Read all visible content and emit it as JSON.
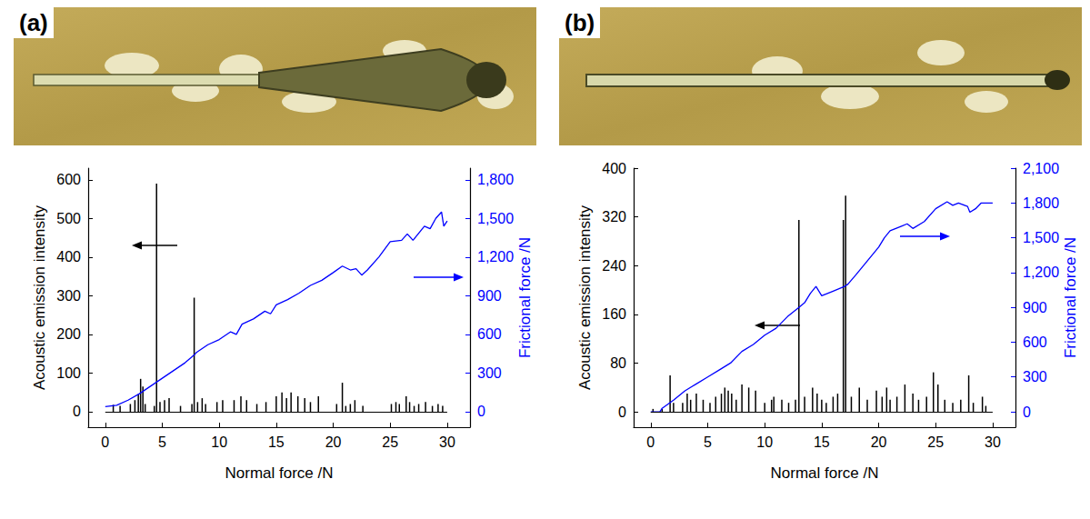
{
  "chart_data": [
    {
      "type": "bar",
      "title": "(a)",
      "x_label": "Normal force /N",
      "y_label": "Acoustic emission intensity",
      "y2_label": "Frictional force /N",
      "xlim": [
        -1.5,
        32
      ],
      "xticks": [
        0,
        5,
        10,
        15,
        20,
        25,
        30
      ],
      "ylim": [
        -40,
        630
      ],
      "yticks": [
        0,
        100,
        200,
        300,
        400,
        500,
        600
      ],
      "y2lim": [
        -120,
        1890
      ],
      "y2ticks": [
        0,
        300,
        600,
        900,
        1200,
        1500,
        1800
      ],
      "grid": false,
      "series": [
        {
          "type": "bar",
          "color": "#000000",
          "x": [
            0.7,
            1.3,
            2.2,
            2.6,
            2.9,
            3.1,
            3.3,
            3.5,
            4.3,
            4.5,
            4.8,
            5.2,
            5.6,
            6.6,
            7.6,
            7.8,
            8.1,
            8.5,
            8.8,
            9.8,
            10.3,
            11.3,
            11.9,
            12.4,
            13.3,
            14.1,
            15.0,
            15.5,
            15.9,
            16.3,
            16.9,
            17.5,
            18.0,
            18.7,
            20.3,
            20.8,
            21.1,
            21.5,
            21.9,
            22.6,
            25.1,
            25.5,
            25.8,
            26.4,
            26.7,
            27.1,
            27.5,
            28.1,
            28.7,
            29.2,
            29.6
          ],
          "values": [
            18,
            15,
            20,
            30,
            45,
            85,
            65,
            20,
            15,
            590,
            25,
            30,
            35,
            15,
            20,
            295,
            25,
            35,
            20,
            25,
            30,
            30,
            40,
            30,
            20,
            25,
            40,
            50,
            35,
            50,
            40,
            35,
            25,
            40,
            20,
            75,
            15,
            20,
            30,
            15,
            20,
            25,
            20,
            40,
            25,
            15,
            20,
            25,
            15,
            20,
            15
          ]
        },
        {
          "type": "line",
          "axis": "y2",
          "color": "#0000ff",
          "x": [
            0,
            1,
            2,
            3,
            4,
            4.5,
            5,
            6,
            7,
            7.8,
            8,
            9,
            10,
            11,
            11.5,
            12,
            13,
            14,
            14.5,
            15,
            16,
            17,
            18,
            19,
            20,
            20.8,
            21.5,
            22,
            22.5,
            23,
            24,
            25,
            26,
            26.5,
            27,
            28,
            28.5,
            29,
            29.5,
            29.7,
            30
          ],
          "values": [
            40,
            50,
            90,
            140,
            200,
            230,
            260,
            320,
            380,
            440,
            460,
            520,
            560,
            620,
            600,
            680,
            720,
            780,
            760,
            830,
            870,
            920,
            980,
            1020,
            1080,
            1130,
            1100,
            1110,
            1060,
            1100,
            1200,
            1320,
            1330,
            1380,
            1330,
            1440,
            1420,
            1500,
            1550,
            1440,
            1480
          ]
        }
      ]
    },
    {
      "type": "bar",
      "title": "(b)",
      "x_label": "Normal force /N",
      "y_label": "Acoustic emission intensity",
      "y2_label": "Frictional force /N",
      "xlim": [
        -1.5,
        32
      ],
      "xticks": [
        0,
        5,
        10,
        15,
        20,
        25,
        30
      ],
      "ylim": [
        -25,
        400
      ],
      "yticks": [
        0,
        80,
        160,
        240,
        320,
        400
      ],
      "y2lim": [
        -133,
        2100
      ],
      "y2ticks": [
        0,
        300,
        600,
        900,
        1200,
        1500,
        1800,
        2100
      ],
      "grid": false,
      "series": [
        {
          "type": "bar",
          "color": "#000000",
          "x": [
            0.2,
            1.0,
            1.7,
            2.0,
            2.8,
            3.2,
            3.5,
            4.0,
            4.6,
            5.2,
            5.7,
            6.2,
            6.5,
            6.8,
            7.1,
            7.5,
            8.0,
            8.6,
            9.2,
            10.0,
            10.6,
            10.8,
            11.5,
            12.1,
            12.7,
            13.0,
            13.5,
            14.2,
            14.6,
            15.0,
            15.4,
            16.0,
            16.4,
            16.9,
            17.1,
            17.6,
            18.3,
            19.0,
            19.8,
            20.3,
            20.7,
            21.0,
            21.6,
            22.3,
            23.0,
            23.5,
            24.2,
            24.8,
            25.2,
            25.8,
            26.5,
            27.2,
            27.9,
            28.3,
            29.1,
            29.4
          ],
          "values": [
            5,
            5,
            60,
            15,
            15,
            30,
            20,
            30,
            20,
            15,
            25,
            30,
            40,
            35,
            30,
            20,
            45,
            40,
            35,
            15,
            20,
            25,
            20,
            15,
            20,
            315,
            25,
            40,
            30,
            20,
            15,
            25,
            30,
            315,
            355,
            25,
            40,
            20,
            35,
            25,
            40,
            20,
            25,
            45,
            30,
            20,
            25,
            65,
            45,
            20,
            15,
            20,
            60,
            15,
            25,
            10
          ]
        },
        {
          "type": "line",
          "axis": "y2",
          "color": "#0000ff",
          "x": [
            0,
            0.8,
            1,
            2,
            3,
            4,
            5,
            6,
            7,
            8,
            9,
            10,
            11,
            12,
            13,
            13.5,
            14,
            14.5,
            15,
            16,
            17,
            17.3,
            18,
            19,
            20,
            20.5,
            21,
            22,
            22.5,
            23,
            24,
            25,
            26,
            26.5,
            27,
            27.8,
            28,
            28.5,
            29,
            30
          ],
          "values": [
            0,
            0,
            30,
            100,
            180,
            240,
            300,
            360,
            420,
            520,
            580,
            660,
            720,
            820,
            900,
            940,
            1020,
            1080,
            1000,
            1040,
            1080,
            1100,
            1180,
            1300,
            1420,
            1500,
            1560,
            1600,
            1620,
            1580,
            1640,
            1750,
            1810,
            1780,
            1800,
            1770,
            1720,
            1750,
            1800,
            1800
          ]
        }
      ]
    }
  ]
}
